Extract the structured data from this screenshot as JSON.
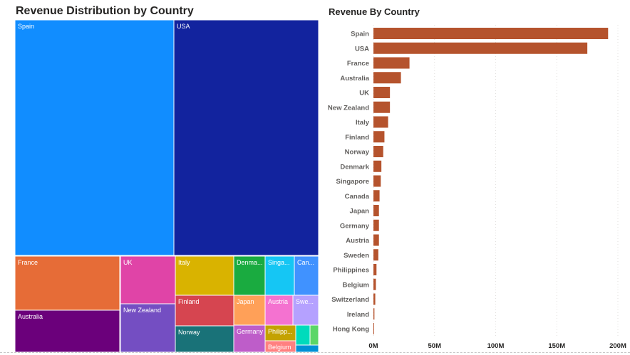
{
  "chart_data": [
    {
      "type": "treemap",
      "title": "Revenue Distribution by Country",
      "colors": {
        "Spain": "#118dff",
        "USA": "#12239e",
        "France": "#e66c37",
        "Australia": "#6b007b",
        "UK": "#e044a7",
        "New Zealand": "#744ec2",
        "Italy": "#d9b300",
        "Finland": "#d64550",
        "Norway": "#197278",
        "Denmark": "#1aab40",
        "Singapore": "#15c6f4",
        "Canada": "#4092ff",
        "Japan": "#ffa058",
        "Germany": "#be5dc9",
        "Austria": "#f472d0",
        "Sweden": "#b5a1ff",
        "Philippines": "#c4a200",
        "Belgium": "#ff8080",
        "Switzerland": "#00dbbc",
        "Ireland": "#5bd667",
        "Hong Kong": "#0091d5"
      },
      "labels": {
        "Spain": "Spain",
        "USA": "USA",
        "France": "France",
        "Australia": "Australia",
        "UK": "UK",
        "New Zealand": "New Zealand",
        "Italy": "Italy",
        "Finland": "Finland",
        "Norway": "Norway",
        "Denmark": "Denma...",
        "Singapore": "Singa...",
        "Canada": "Can...",
        "Japan": "Japan",
        "Germany": "Germany",
        "Austria": "Austria",
        "Sweden": "Swe...",
        "Philippines": "Philipp...",
        "Belgium": "Belgium",
        "Switzerland": "",
        "Ireland": "",
        "Hong Kong": ""
      }
    },
    {
      "type": "bar",
      "orientation": "horizontal",
      "title": "Revenue By Country",
      "bar_color": "#b5532d",
      "categories": [
        "Spain",
        "USA",
        "France",
        "Australia",
        "UK",
        "New Zealand",
        "Italy",
        "Finland",
        "Norway",
        "Denmark",
        "Singapore",
        "Canada",
        "Japan",
        "Germany",
        "Austria",
        "Sweden",
        "Philippines",
        "Belgium",
        "Switzerland",
        "Ireland",
        "Hong Kong"
      ],
      "values": [
        192,
        175,
        29.5,
        22.5,
        13.5,
        13.5,
        12,
        9,
        8,
        6.5,
        6,
        5,
        4.5,
        4.5,
        4.5,
        4,
        2.5,
        2,
        1.5,
        0.8,
        0.5
      ],
      "unit": "M",
      "xlim": [
        0,
        200
      ],
      "xticks": [
        "0M",
        "50M",
        "100M",
        "150M",
        "200M"
      ],
      "grid": "vertical-dotted"
    }
  ]
}
